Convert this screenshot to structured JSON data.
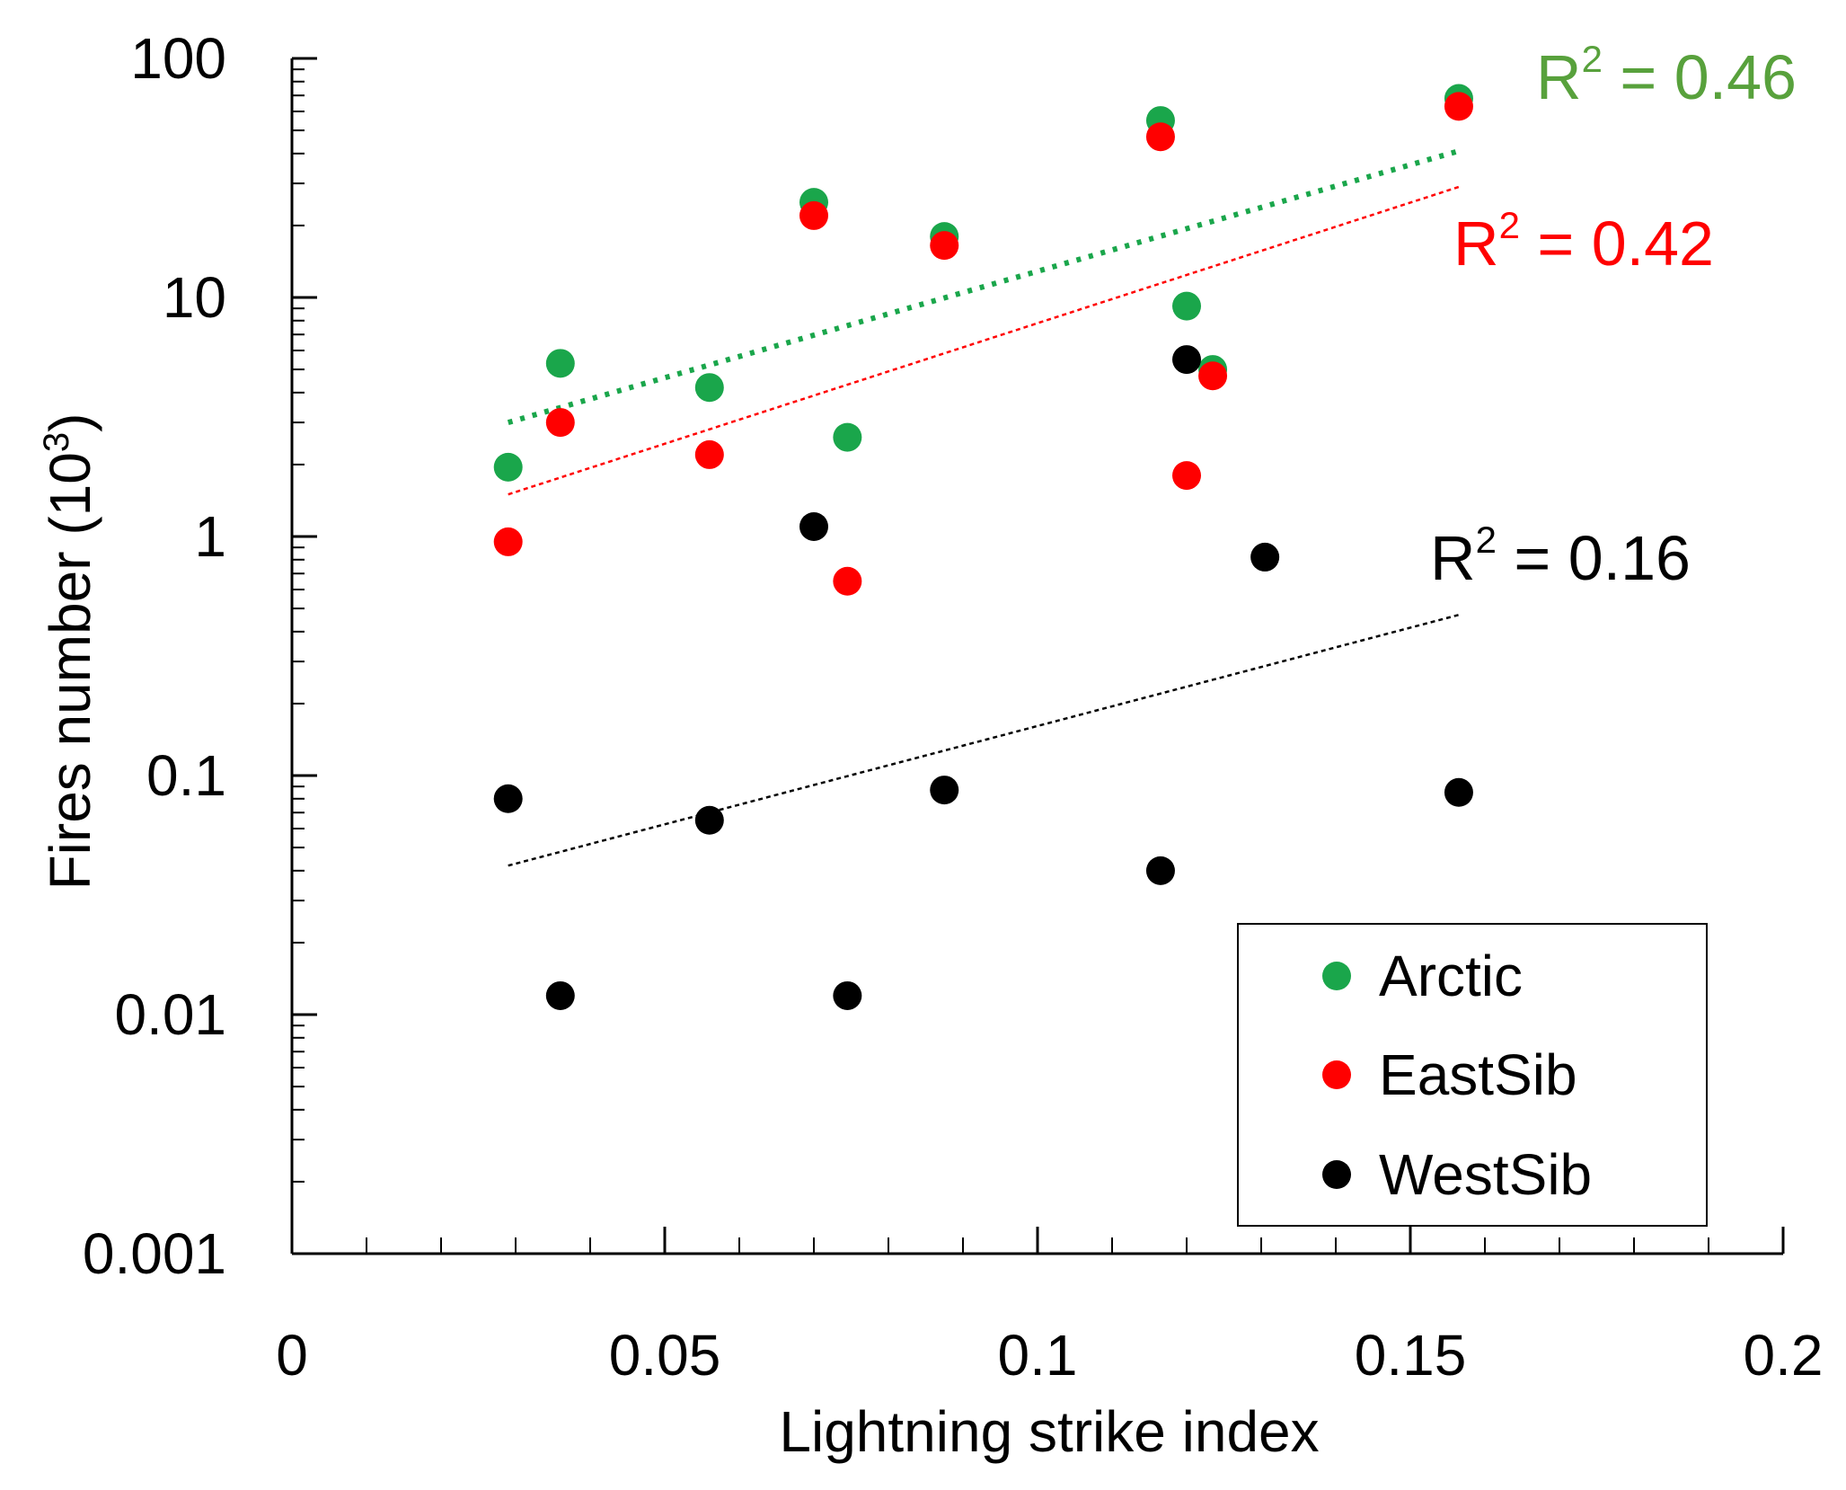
{
  "chart_data": {
    "type": "scatter",
    "title": "",
    "xlabel": "Lightning strike index",
    "ylabel_main": "Fires number (10",
    "ylabel_exp": "3",
    "ylabel_close": ")",
    "xlim": [
      0,
      0.2
    ],
    "ylim": [
      0.001,
      100
    ],
    "yscale": "log",
    "x_ticks": [
      {
        "value": 0,
        "label": "0"
      },
      {
        "value": 0.05,
        "label": "0.05"
      },
      {
        "value": 0.1,
        "label": "0.1"
      },
      {
        "value": 0.15,
        "label": "0.15"
      },
      {
        "value": 0.2,
        "label": "0.2"
      }
    ],
    "y_ticks": [
      {
        "value": 100,
        "label": "100"
      },
      {
        "value": 10,
        "label": "10"
      },
      {
        "value": 1,
        "label": "1"
      },
      {
        "value": 0.1,
        "label": "0.1"
      },
      {
        "value": 0.01,
        "label": "0.01"
      },
      {
        "value": 0.001,
        "label": "0.001"
      }
    ],
    "legend_position": "bottom-right",
    "series": [
      {
        "name": "Arctic",
        "color": "#1aa64b",
        "x": [
          0.029,
          0.036,
          0.056,
          0.07,
          0.0745,
          0.0875,
          0.1165,
          0.12,
          0.1235,
          0.1565
        ],
        "y": [
          1.95,
          5.3,
          4.2,
          25,
          2.6,
          18,
          55,
          9.2,
          5.0,
          68
        ],
        "trend": {
          "x": [
            0.029,
            0.1565
          ],
          "y": [
            3.0,
            41
          ],
          "style": "dotted",
          "r2_base": "R",
          "r2_exp": "2",
          "r2_rest": " = 0.46"
        }
      },
      {
        "name": "EastSib",
        "color": "#ff0000",
        "x": [
          0.029,
          0.036,
          0.056,
          0.07,
          0.0745,
          0.0875,
          0.1165,
          0.12,
          0.1235,
          0.1565
        ],
        "y": [
          0.95,
          3.0,
          2.2,
          22,
          0.65,
          16.5,
          47,
          1.8,
          4.7,
          63
        ],
        "trend": {
          "x": [
            0.029,
            0.1565
          ],
          "y": [
            1.5,
            29
          ],
          "style": "dashed",
          "r2_base": "R",
          "r2_exp": "2",
          "r2_rest": " = 0.42"
        }
      },
      {
        "name": "WestSib",
        "color": "#000000",
        "x": [
          0.029,
          0.036,
          0.056,
          0.07,
          0.0745,
          0.0875,
          0.1165,
          0.12,
          0.1305,
          0.1565
        ],
        "y": [
          0.08,
          0.012,
          0.065,
          1.1,
          0.012,
          0.087,
          0.04,
          5.5,
          0.82,
          0.085
        ],
        "trend": {
          "x": [
            0.029,
            0.1565
          ],
          "y": [
            0.042,
            0.47
          ],
          "style": "dashed",
          "r2_base": "R",
          "r2_exp": "2",
          "r2_rest": " = 0.16"
        }
      }
    ]
  }
}
